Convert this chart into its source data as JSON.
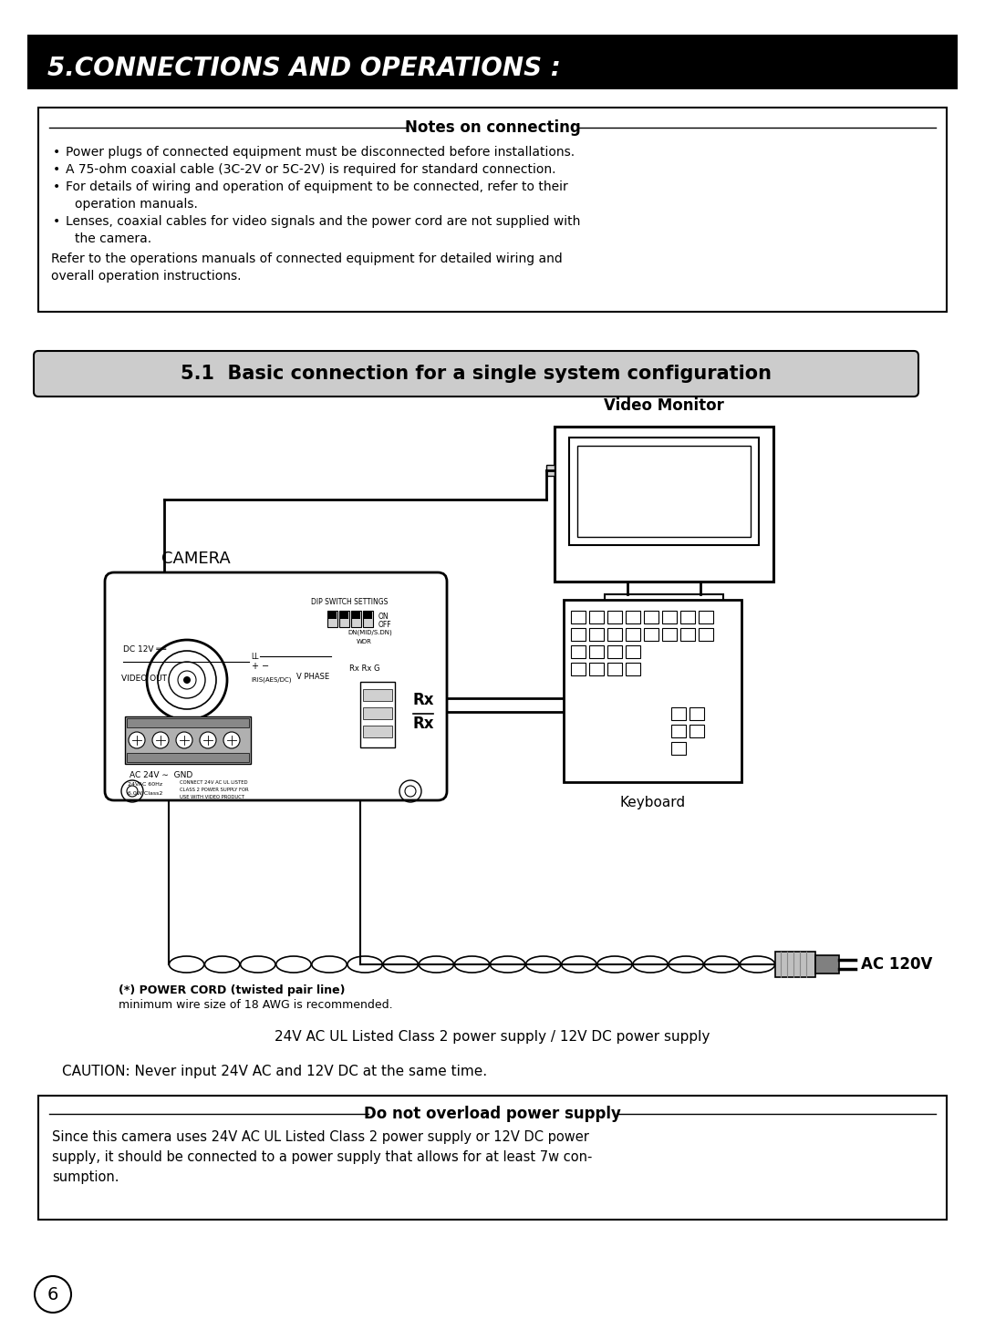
{
  "title_text": "5.CONNECTIONS AND OPERATIONS :",
  "section_title": "5.1  Basic connection for a single system configuration",
  "notes_title": "Notes on connecting",
  "notes_bullets": [
    "Power plugs of connected equipment must be disconnected before installations.",
    "A 75-ohm coaxial cable (3C-2V or 5C-2V) is required for standard connection.",
    "For details of wiring and operation of equipment to be connected, refer to their\noperation manuals.",
    "Lenses, coaxial cables for video signals and the power cord are not supplied with\nthe camera."
  ],
  "notes_para": "Refer to the operations manuals of connected equipment for detailed wiring and\noverall operation instructions.",
  "video_monitor_label": "Video Monitor",
  "camera_label": "CAMERA",
  "keyboard_label": "Keyboard",
  "rx_label1": "Rx",
  "rx_label2": "Rx",
  "power_cord_label": "(*) POWER CORD (twisted pair line)",
  "min_wire_label": "minimum wire size of 18 AWG is recommended.",
  "ac120v_label": "AC 120V",
  "power_supply_label": "24V AC UL Listed Class 2 power supply / 12V DC power supply",
  "caution_label": "CAUTION: Never input 24V AC and 12V DC at the same time.",
  "overload_title": "Do not overload power supply",
  "overload_text": "Since this camera uses 24V AC UL Listed Class 2 power supply or 12V DC power\nsupply, it should be connected to a power supply that allows for at least 7w con-\nsumption.",
  "page_number": "6",
  "bg_color": "#ffffff",
  "header_bg": "#000000",
  "header_fg": "#ffffff",
  "section_bg": "#cccccc",
  "border_color": "#000000"
}
